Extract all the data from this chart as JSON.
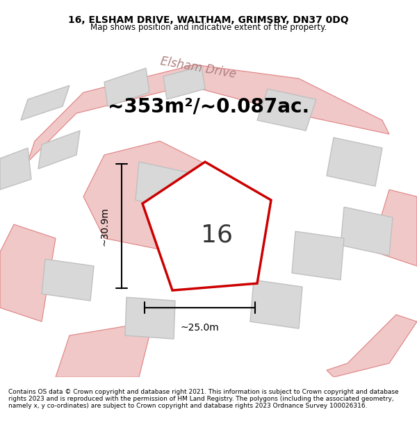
{
  "title": "16, ELSHAM DRIVE, WALTHAM, GRIMSBY, DN37 0DQ",
  "subtitle": "Map shows position and indicative extent of the property.",
  "area_text": "~353m²/~0.087ac.",
  "label_16": "16",
  "dim_width": "~25.0m",
  "dim_height": "~30.9m",
  "footer": "Contains OS data © Crown copyright and database right 2021. This information is subject to Crown copyright and database rights 2023 and is reproduced with the permission of HM Land Registry. The polygons (including the associated geometry, namely x, y co-ordinates) are subject to Crown copyright and database rights 2023 Ordnance Survey 100026316.",
  "bg_color": "#ffffff",
  "map_bg": "#f5f5f5",
  "road_color": "#f0c8c8",
  "road_stroke": "#e08080",
  "building_fill": "#d8d8d8",
  "building_stroke": "#c0c0c0",
  "plot_fill": "#ffffff",
  "plot_stroke": "#cc0000",
  "dim_color": "#000000",
  "street_label_color": "#b08080",
  "title_color": "#000000",
  "footer_color": "#000000"
}
